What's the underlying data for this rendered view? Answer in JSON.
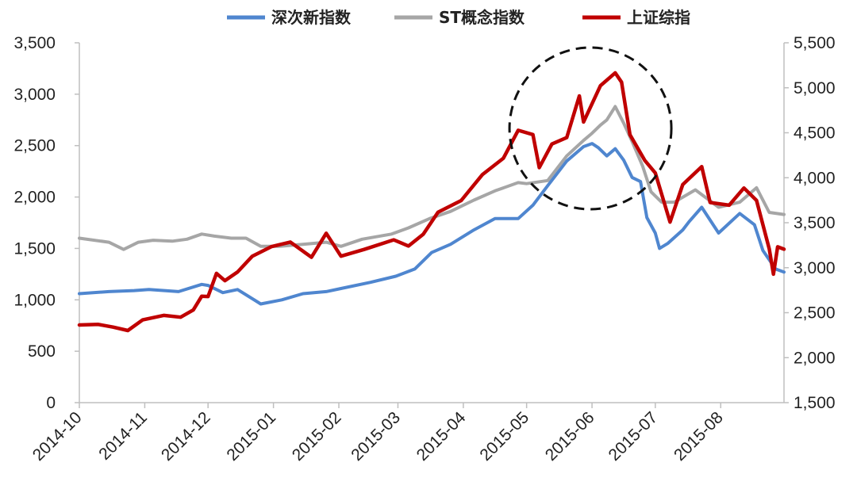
{
  "chart_data": {
    "type": "line",
    "title": "",
    "dual_axis": true,
    "grid": false,
    "legend_position": "top",
    "x_ticks": [
      "2014-10",
      "2014-11",
      "2014-12",
      "2015-01",
      "2015-02",
      "2015-03",
      "2015-04",
      "2015-05",
      "2015-06",
      "2015-07",
      "2015-08"
    ],
    "y_left": {
      "min": 0,
      "max": 3500,
      "ticks": [
        0,
        500,
        1000,
        1500,
        2000,
        2500,
        3000,
        3500
      ],
      "tick_labels": [
        "0",
        "500",
        "1,000",
        "1,500",
        "2,000",
        "2,500",
        "3,000",
        "3,500"
      ]
    },
    "y_right": {
      "min": 1500,
      "max": 5500,
      "ticks": [
        1500,
        2000,
        2500,
        3000,
        3500,
        4000,
        4500,
        5000,
        5500
      ],
      "tick_labels": [
        "1,500",
        "2,000",
        "2,500",
        "3,000",
        "3,500",
        "4,000",
        "4,500",
        "5,000",
        "5,500"
      ]
    },
    "annotation": {
      "type": "dashed-circle",
      "around": "2015-06 peak"
    },
    "series": [
      {
        "name": "深次新指数",
        "axis": "left",
        "color": "#4f86cf",
        "points": [
          [
            "2014-10-01",
            1060
          ],
          [
            "2014-10-15",
            1080
          ],
          [
            "2014-10-27",
            1090
          ],
          [
            "2014-11-03",
            1100
          ],
          [
            "2014-11-17",
            1080
          ],
          [
            "2014-11-28",
            1150
          ],
          [
            "2014-12-01",
            1140
          ],
          [
            "2014-12-08",
            1070
          ],
          [
            "2014-12-15",
            1100
          ],
          [
            "2014-12-26",
            960
          ],
          [
            "2015-01-05",
            1000
          ],
          [
            "2015-01-15",
            1060
          ],
          [
            "2015-01-26",
            1080
          ],
          [
            "2015-02-02",
            1110
          ],
          [
            "2015-02-16",
            1170
          ],
          [
            "2015-02-28",
            1230
          ],
          [
            "2015-03-09",
            1300
          ],
          [
            "2015-03-17",
            1460
          ],
          [
            "2015-03-26",
            1540
          ],
          [
            "2015-04-06",
            1680
          ],
          [
            "2015-04-16",
            1790
          ],
          [
            "2015-04-27",
            1790
          ],
          [
            "2015-05-04",
            1920
          ],
          [
            "2015-05-11",
            2110
          ],
          [
            "2015-05-20",
            2350
          ],
          [
            "2015-05-28",
            2490
          ],
          [
            "2015-06-01",
            2520
          ],
          [
            "2015-06-04",
            2480
          ],
          [
            "2015-06-08",
            2400
          ],
          [
            "2015-06-12",
            2470
          ],
          [
            "2015-06-16",
            2360
          ],
          [
            "2015-06-20",
            2190
          ],
          [
            "2015-06-24",
            2150
          ],
          [
            "2015-06-27",
            1800
          ],
          [
            "2015-07-01",
            1650
          ],
          [
            "2015-07-03",
            1500
          ],
          [
            "2015-07-07",
            1550
          ],
          [
            "2015-07-14",
            1680
          ],
          [
            "2015-07-17",
            1760
          ],
          [
            "2015-07-23",
            1900
          ],
          [
            "2015-07-31",
            1650
          ],
          [
            "2015-08-10",
            1840
          ],
          [
            "2015-08-17",
            1730
          ],
          [
            "2015-08-21",
            1480
          ],
          [
            "2015-08-27",
            1300
          ],
          [
            "2015-08-31",
            1270
          ]
        ]
      },
      {
        "name": "ST概念指数",
        "axis": "left",
        "color": "#a6a6a6",
        "points": [
          [
            "2014-10-01",
            1600
          ],
          [
            "2014-10-15",
            1560
          ],
          [
            "2014-10-22",
            1490
          ],
          [
            "2014-10-29",
            1560
          ],
          [
            "2014-11-05",
            1580
          ],
          [
            "2014-11-14",
            1570
          ],
          [
            "2014-11-21",
            1590
          ],
          [
            "2014-11-28",
            1640
          ],
          [
            "2014-12-04",
            1620
          ],
          [
            "2014-12-12",
            1600
          ],
          [
            "2014-12-19",
            1600
          ],
          [
            "2014-12-26",
            1520
          ],
          [
            "2015-01-04",
            1520
          ],
          [
            "2015-01-15",
            1540
          ],
          [
            "2015-01-26",
            1560
          ],
          [
            "2015-02-02",
            1520
          ],
          [
            "2015-02-12",
            1590
          ],
          [
            "2015-02-26",
            1640
          ],
          [
            "2015-03-06",
            1700
          ],
          [
            "2015-03-16",
            1790
          ],
          [
            "2015-03-26",
            1860
          ],
          [
            "2015-04-06",
            1970
          ],
          [
            "2015-04-16",
            2060
          ],
          [
            "2015-04-27",
            2140
          ],
          [
            "2015-05-01",
            2130
          ],
          [
            "2015-05-11",
            2160
          ],
          [
            "2015-05-20",
            2400
          ],
          [
            "2015-05-28",
            2550
          ],
          [
            "2015-06-01",
            2620
          ],
          [
            "2015-06-05",
            2700
          ],
          [
            "2015-06-08",
            2750
          ],
          [
            "2015-06-12",
            2880
          ],
          [
            "2015-06-16",
            2720
          ],
          [
            "2015-06-20",
            2540
          ],
          [
            "2015-06-25",
            2300
          ],
          [
            "2015-06-29",
            2050
          ],
          [
            "2015-07-04",
            1950
          ],
          [
            "2015-07-10",
            1950
          ],
          [
            "2015-07-20",
            2070
          ],
          [
            "2015-07-31",
            1900
          ],
          [
            "2015-08-10",
            1950
          ],
          [
            "2015-08-18",
            2090
          ],
          [
            "2015-08-24",
            1850
          ],
          [
            "2015-08-31",
            1830
          ]
        ]
      },
      {
        "name": "上证综指",
        "axis": "right",
        "color": "#c00000",
        "points": [
          [
            "2014-10-01",
            2363
          ],
          [
            "2014-10-10",
            2370
          ],
          [
            "2014-10-17",
            2340
          ],
          [
            "2014-10-24",
            2302
          ],
          [
            "2014-10-31",
            2420
          ],
          [
            "2014-11-10",
            2470
          ],
          [
            "2014-11-18",
            2450
          ],
          [
            "2014-11-24",
            2530
          ],
          [
            "2014-11-28",
            2683
          ],
          [
            "2014-12-01",
            2680
          ],
          [
            "2014-12-05",
            2937
          ],
          [
            "2014-12-09",
            2856
          ],
          [
            "2014-12-15",
            2953
          ],
          [
            "2014-12-22",
            3128
          ],
          [
            "2014-12-31",
            3234
          ],
          [
            "2015-01-09",
            3285
          ],
          [
            "2015-01-19",
            3116
          ],
          [
            "2015-01-26",
            3383
          ],
          [
            "2015-02-02",
            3128
          ],
          [
            "2015-02-13",
            3203
          ],
          [
            "2015-02-27",
            3310
          ],
          [
            "2015-03-06",
            3241
          ],
          [
            "2015-03-13",
            3372
          ],
          [
            "2015-03-20",
            3617
          ],
          [
            "2015-03-31",
            3747
          ],
          [
            "2015-04-10",
            4034
          ],
          [
            "2015-04-20",
            4217
          ],
          [
            "2015-04-27",
            4527
          ],
          [
            "2015-05-04",
            4480
          ],
          [
            "2015-05-07",
            4112
          ],
          [
            "2015-05-13",
            4375
          ],
          [
            "2015-05-20",
            4446
          ],
          [
            "2015-05-26",
            4910
          ],
          [
            "2015-05-28",
            4620
          ],
          [
            "2015-06-05",
            5023
          ],
          [
            "2015-06-12",
            5166
          ],
          [
            "2015-06-15",
            5062
          ],
          [
            "2015-06-19",
            4478
          ],
          [
            "2015-06-26",
            4193
          ],
          [
            "2015-07-01",
            4053
          ],
          [
            "2015-07-08",
            3507
          ],
          [
            "2015-07-14",
            3924
          ],
          [
            "2015-07-23",
            4124
          ],
          [
            "2015-07-27",
            3725
          ],
          [
            "2015-08-05",
            3695
          ],
          [
            "2015-08-12",
            3886
          ],
          [
            "2015-08-18",
            3748
          ],
          [
            "2015-08-24",
            3210
          ],
          [
            "2015-08-26",
            2928
          ],
          [
            "2015-08-28",
            3232
          ],
          [
            "2015-08-31",
            3206
          ]
        ]
      }
    ]
  }
}
